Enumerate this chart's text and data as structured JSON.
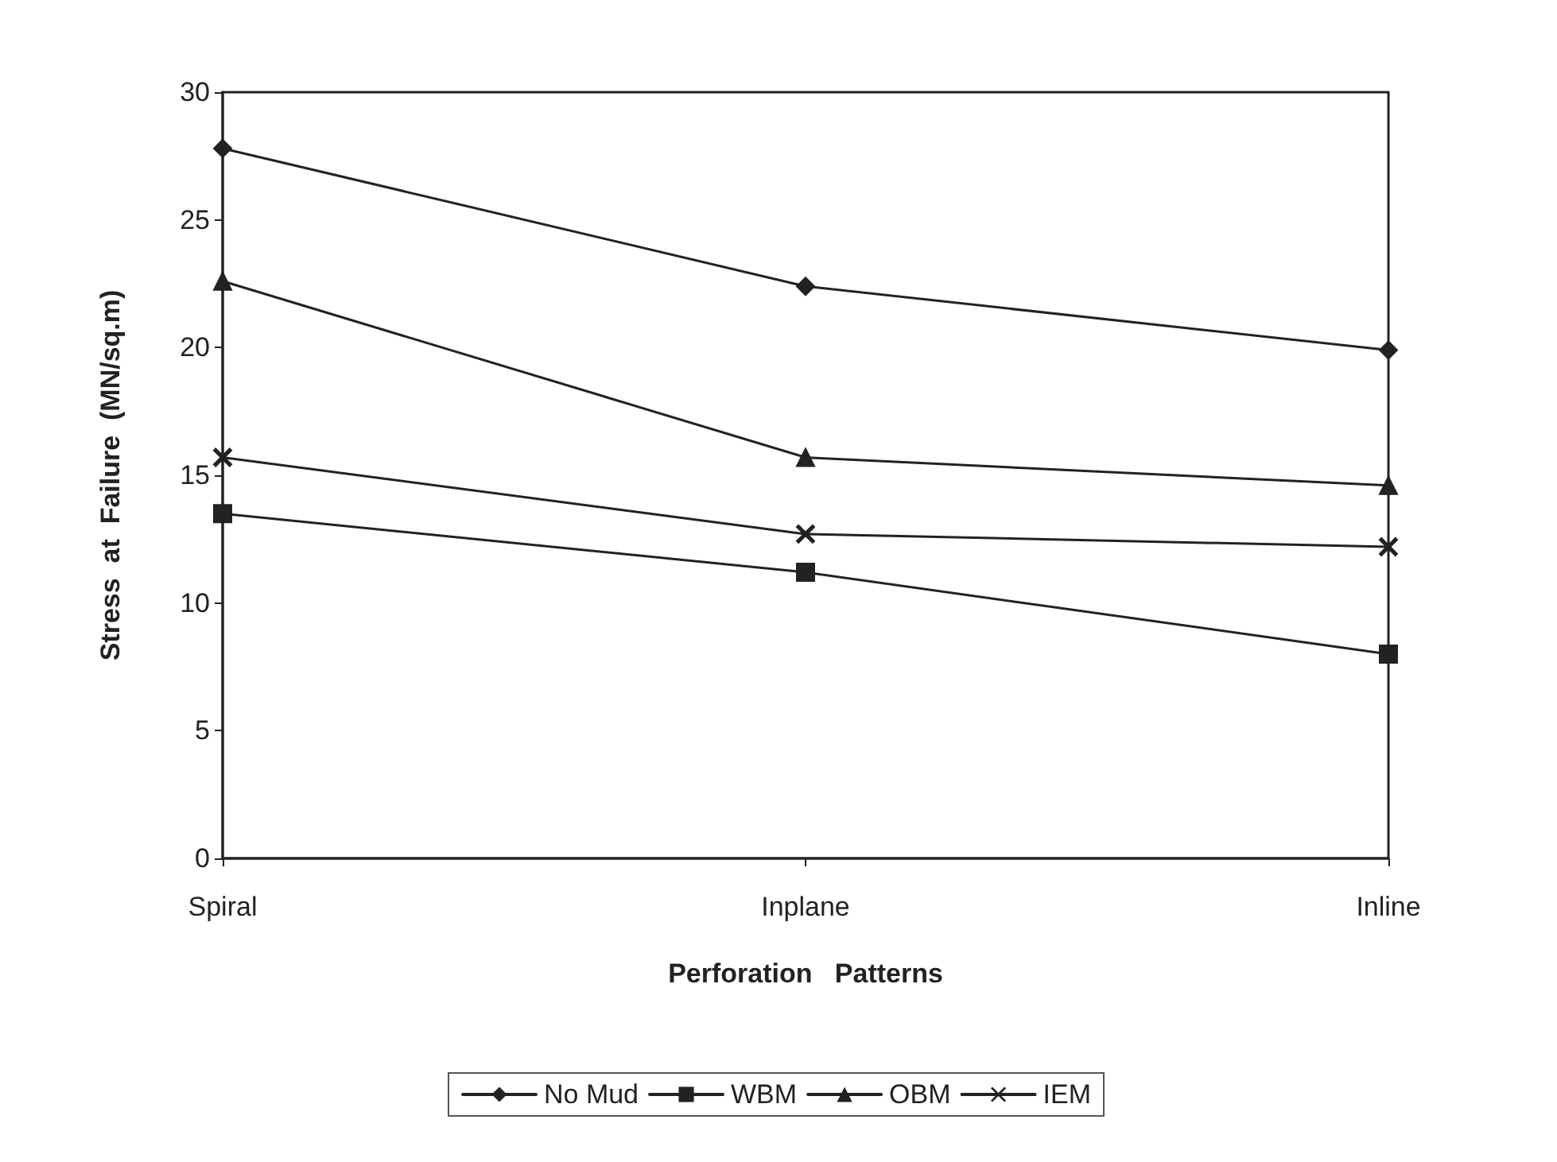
{
  "chart_data": {
    "type": "line",
    "xlabel": "Perforation   Patterns",
    "ylabel": "Stress  at  Failure  (MN/sq.m)",
    "categories": [
      "Spiral",
      "Inplane",
      "Inline"
    ],
    "series": [
      {
        "name": "No Mud",
        "color": "#222222",
        "marker": "diamond",
        "values": [
          27.8,
          22.4,
          19.9
        ]
      },
      {
        "name": "WBM",
        "color": "#222222",
        "marker": "square",
        "values": [
          13.5,
          11.2,
          8.0
        ]
      },
      {
        "name": "OBM",
        "color": "#222222",
        "marker": "triangle",
        "values": [
          22.6,
          15.7,
          14.6
        ]
      },
      {
        "name": "IEM",
        "color": "#222222",
        "marker": "cross",
        "values": [
          15.7,
          12.7,
          12.2
        ]
      }
    ],
    "ylim": [
      0,
      30
    ],
    "yticks": [
      0,
      5,
      10,
      15,
      20,
      25,
      30
    ],
    "grid": false,
    "legend": "bottom",
    "line_style": "solid"
  }
}
